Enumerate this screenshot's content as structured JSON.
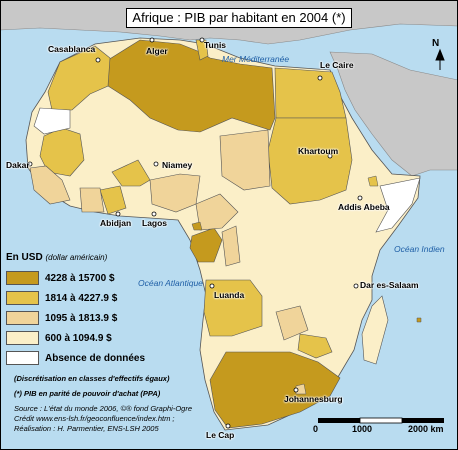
{
  "title": "Afrique : PIB par habitant en 2004 (*)",
  "colors": {
    "sea": "#b9dcf0",
    "outside": "#c8c8c8",
    "class1": "#c59a1e",
    "class2": "#e5c34a",
    "class3": "#f0d49a",
    "class4": "#fbefc8",
    "class5": "#ffffff"
  },
  "seas": {
    "med": "Mer Méditerranée",
    "atlantic": "Océan Atlantique",
    "indian": "Océan Indien"
  },
  "cities": {
    "casablanca": "Casablanca",
    "alger": "Alger",
    "tunis": "Tunis",
    "le_caire": "Le Caire",
    "dakar": "Dakar",
    "niamey": "Niamey",
    "khartoum": "Khartoum",
    "addis": "Addis Abeba",
    "abidjan": "Abidjan",
    "lagos": "Lagos",
    "luanda": "Luanda",
    "dar": "Dar es-Salaam",
    "johannesburg": "Johannesburg",
    "le_cap": "Le Cap"
  },
  "legend": {
    "title": "En USD",
    "subtitle": "(dollar américain)",
    "classes": [
      {
        "label": "4228 à 15700 $",
        "color": "#c59a1e"
      },
      {
        "label": "1814 à 4227.9 $",
        "color": "#e5c34a"
      },
      {
        "label": "1095 à 1813.9 $",
        "color": "#f0d49a"
      },
      {
        "label": "600 à 1094.9 $",
        "color": "#fbefc8"
      },
      {
        "label": "Absence de données",
        "color": "#ffffff"
      }
    ]
  },
  "notes": {
    "line1": "(Discrétisation en classes d'effectifs égaux)",
    "line2": "(*) PIB en parité de pouvoir d'achat (PPA)",
    "line3": "Source : L'état du monde 2006, ©® fond Graphi-Ogre",
    "line4": "Crédit www.ens-lsh.fr/geoconfluence/index.htm ;",
    "line5": "Réalisation : H. Parmentier, ENS-LSH 2005"
  },
  "scale": {
    "l0": "0",
    "l1": "1000",
    "l2": "2000 km"
  },
  "north": "N"
}
